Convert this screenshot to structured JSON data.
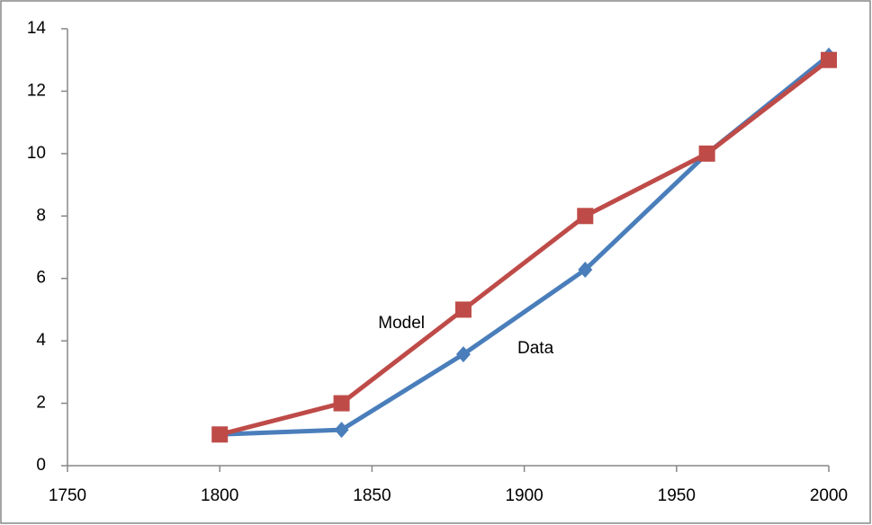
{
  "chart_data": {
    "type": "line",
    "x": [
      1800,
      1840,
      1880,
      1920,
      1960,
      2000
    ],
    "series": [
      {
        "name": "Data",
        "color": "#4a7ebb",
        "marker": "diamond",
        "values": [
          1,
          1.15,
          3.57,
          6.28,
          10,
          13.14
        ]
      },
      {
        "name": "Model",
        "color": "#be4b48",
        "marker": "square",
        "values": [
          1,
          2,
          5,
          8,
          10,
          13
        ]
      }
    ],
    "xlim": [
      1750,
      2000
    ],
    "xticks": [
      1750,
      1800,
      1850,
      1900,
      1950,
      2000
    ],
    "ylim": [
      0,
      14
    ],
    "yticks": [
      0,
      2,
      4,
      6,
      8,
      10,
      12,
      14
    ],
    "grid": false
  }
}
